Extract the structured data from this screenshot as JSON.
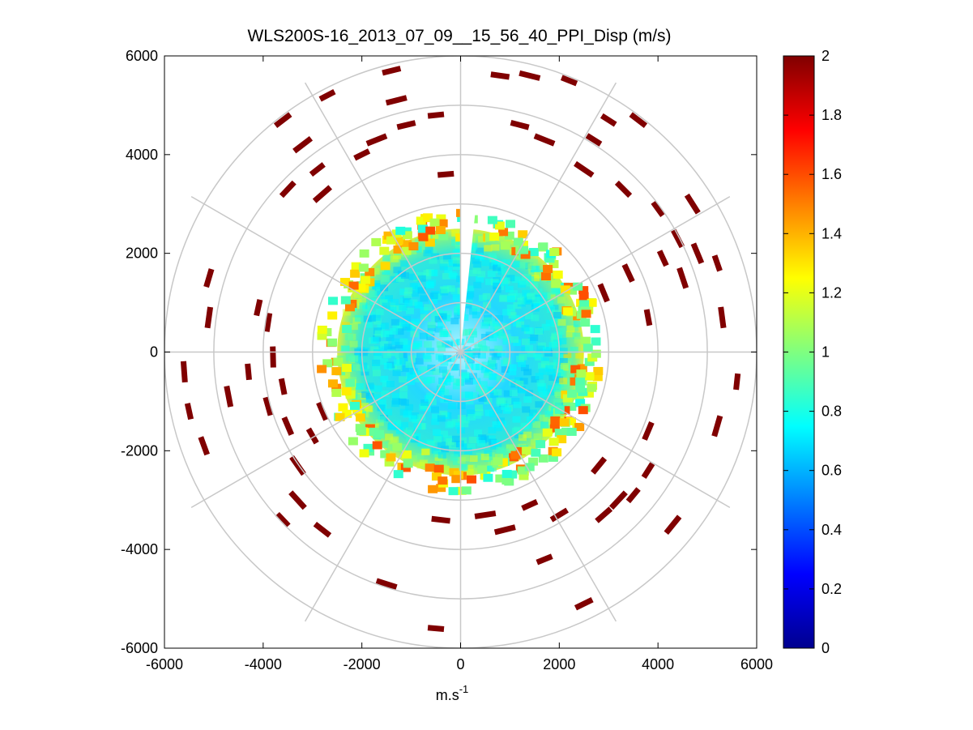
{
  "chart_data": {
    "type": "heatmap",
    "subtype": "polar-ppi-scan",
    "title": "WLS200S-16_2013_07_09__15_56_40_PPI_Disp (m/s)",
    "xlabel_base": "m.s",
    "xlabel_exp": "-1",
    "ylabel": "",
    "xlim": [
      -6000,
      6000
    ],
    "ylim": [
      -6000,
      6000
    ],
    "xticks": [
      -6000,
      -4000,
      -2000,
      0,
      2000,
      4000,
      6000
    ],
    "yticks": [
      6000,
      4000,
      2000,
      0,
      -2000,
      -4000,
      -6000
    ],
    "polar_grid": {
      "ring_radii": [
        1000,
        2000,
        3000,
        4000,
        5000,
        6000
      ],
      "spoke_angles_deg": [
        0,
        30,
        60,
        90,
        120,
        150,
        180,
        210,
        240,
        270,
        300,
        330
      ]
    },
    "colorbar": {
      "colormap": "jet",
      "min": 0,
      "max": 2,
      "ticks": [
        0,
        0.2,
        0.4,
        0.6,
        0.8,
        1,
        1.2,
        1.4,
        1.6,
        1.8,
        2
      ]
    },
    "data_summary": {
      "dense_region_radius": 2500,
      "dense_region_typical_value": 0.75,
      "gap_wedge_azimuth_deg": [
        0,
        6
      ],
      "outer_sparse_value": 2.0,
      "outer_sparse_range": [
        2500,
        5700
      ]
    },
    "outer_segments": [
      {
        "x": -2700,
        "y": 5200
      },
      {
        "x": -1400,
        "y": 5700
      },
      {
        "x": -1300,
        "y": 5100
      },
      {
        "x": -500,
        "y": 4800
      },
      {
        "x": -1100,
        "y": 4600
      },
      {
        "x": -1700,
        "y": 4300
      },
      {
        "x": -2000,
        "y": 4000
      },
      {
        "x": -3600,
        "y": 4700
      },
      {
        "x": -3200,
        "y": 4200
      },
      {
        "x": -2900,
        "y": 3700
      },
      {
        "x": -3500,
        "y": 3300
      },
      {
        "x": -2800,
        "y": 3200
      },
      {
        "x": -300,
        "y": 3600
      },
      {
        "x": 800,
        "y": 5600
      },
      {
        "x": 1400,
        "y": 5600
      },
      {
        "x": 2200,
        "y": 5500
      },
      {
        "x": 1200,
        "y": 4600
      },
      {
        "x": 1700,
        "y": 4300
      },
      {
        "x": 3000,
        "y": 4700
      },
      {
        "x": 3600,
        "y": 4700
      },
      {
        "x": 2500,
        "y": 3700
      },
      {
        "x": 2700,
        "y": 4300
      },
      {
        "x": 3300,
        "y": 3300
      },
      {
        "x": 4700,
        "y": 3000
      },
      {
        "x": 4000,
        "y": 2900
      },
      {
        "x": 4400,
        "y": 2300
      },
      {
        "x": 4800,
        "y": 2000
      },
      {
        "x": 4100,
        "y": 1900
      },
      {
        "x": 3400,
        "y": 1600
      },
      {
        "x": 4500,
        "y": 1500
      },
      {
        "x": 5200,
        "y": 1800
      },
      {
        "x": 2900,
        "y": 1200
      },
      {
        "x": 5300,
        "y": 700
      },
      {
        "x": 3800,
        "y": 700
      },
      {
        "x": -5100,
        "y": 1500
      },
      {
        "x": -5100,
        "y": 700
      },
      {
        "x": -4100,
        "y": 900
      },
      {
        "x": -3900,
        "y": 600
      },
      {
        "x": -5600,
        "y": -400
      },
      {
        "x": -5500,
        "y": -1200
      },
      {
        "x": -5200,
        "y": -1900
      },
      {
        "x": -4700,
        "y": -900
      },
      {
        "x": -4300,
        "y": -400
      },
      {
        "x": -3900,
        "y": -1100
      },
      {
        "x": -3800,
        "y": -100
      },
      {
        "x": -3600,
        "y": -700
      },
      {
        "x": -3500,
        "y": -1500
      },
      {
        "x": -3300,
        "y": -2300
      },
      {
        "x": -3000,
        "y": -1700
      },
      {
        "x": -2800,
        "y": -1200
      },
      {
        "x": -3300,
        "y": -3000
      },
      {
        "x": -3600,
        "y": -3400
      },
      {
        "x": -2800,
        "y": -3600
      },
      {
        "x": -1500,
        "y": -4700
      },
      {
        "x": -500,
        "y": -5600
      },
      {
        "x": -400,
        "y": -3400
      },
      {
        "x": 500,
        "y": -3300
      },
      {
        "x": 1400,
        "y": -3100
      },
      {
        "x": 2000,
        "y": -3300
      },
      {
        "x": 900,
        "y": -3600
      },
      {
        "x": 1700,
        "y": -4200
      },
      {
        "x": 2500,
        "y": -5100
      },
      {
        "x": 3200,
        "y": -3000
      },
      {
        "x": 3500,
        "y": -2900
      },
      {
        "x": 2900,
        "y": -3300
      },
      {
        "x": 4300,
        "y": -3500
      },
      {
        "x": 3800,
        "y": -2400
      },
      {
        "x": 2800,
        "y": -2300
      },
      {
        "x": 5200,
        "y": -1500
      },
      {
        "x": 5600,
        "y": -600
      },
      {
        "x": 3800,
        "y": -1600
      }
    ]
  }
}
